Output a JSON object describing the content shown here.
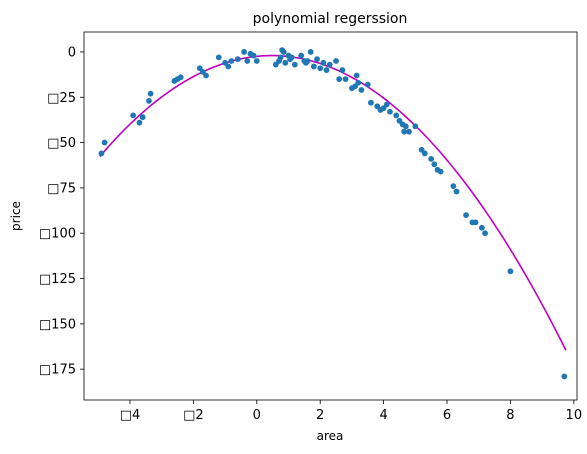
{
  "chart_data": {
    "type": "scatter",
    "title": "polynomial regerssion",
    "xlabel": "area",
    "ylabel": "price",
    "xlim": [
      -5.45,
      10.1
    ],
    "ylim": [
      -192,
      11
    ],
    "x_ticks": [
      -4,
      -2,
      0,
      2,
      4,
      6,
      8,
      10
    ],
    "x_tick_labels": [
      "□4",
      "□2",
      "0",
      "2",
      "4",
      "6",
      "8",
      "10"
    ],
    "y_ticks": [
      0,
      -25,
      -50,
      -75,
      -100,
      -125,
      -150,
      -175
    ],
    "y_tick_labels": [
      "0",
      "□25",
      "□50",
      "□75",
      "□100",
      "□125",
      "□150",
      "□175"
    ],
    "grid": false,
    "colors": {
      "points": "#1f77b4",
      "curve": "#bf00bf"
    },
    "series": [
      {
        "kind": "points",
        "x": [
          -4.9,
          -4.8,
          -3.9,
          -3.7,
          -3.6,
          -3.4,
          -3.35,
          -2.6,
          -2.5,
          -2.4,
          -1.8,
          -1.7,
          -1.6,
          -1.2,
          -1.0,
          -0.9,
          -0.8,
          -0.6,
          -0.4,
          -0.3,
          -0.2,
          -0.1,
          0.0,
          0.6,
          0.7,
          0.75,
          0.8,
          0.85,
          0.9,
          1.0,
          1.05,
          1.1,
          1.2,
          1.4,
          1.5,
          1.55,
          1.6,
          1.7,
          1.8,
          1.9,
          2.0,
          2.1,
          2.2,
          2.3,
          2.5,
          2.6,
          2.7,
          2.8,
          3.0,
          3.1,
          3.15,
          3.2,
          3.3,
          3.5,
          3.6,
          3.8,
          3.9,
          4.0,
          4.1,
          4.2,
          4.4,
          4.5,
          4.6,
          4.65,
          4.7,
          4.8,
          5.0,
          5.2,
          5.3,
          5.5,
          5.6,
          5.7,
          5.8,
          6.2,
          6.3,
          6.6,
          6.8,
          6.9,
          7.1,
          7.2,
          8.0,
          9.7
        ],
        "y": [
          -56,
          -50,
          -35,
          -39,
          -36,
          -27,
          -23,
          -16,
          -15,
          -14,
          -9,
          -11,
          -13,
          -3,
          -6,
          -8,
          -5,
          -4,
          0,
          -5,
          -1,
          -2,
          -5,
          -7,
          -5,
          -3,
          1,
          0,
          -6,
          -2,
          -4,
          -3,
          -7,
          -2,
          -5,
          -6,
          -5,
          0,
          -8,
          -4,
          -9,
          -6,
          -10,
          -7,
          -5,
          -15,
          -10,
          -15,
          -20,
          -19,
          -13,
          -17,
          -21,
          -18,
          -28,
          -30,
          -32,
          -31,
          -29,
          -33,
          -35,
          -38,
          -40,
          -44,
          -41,
          -44,
          -41,
          -54,
          -56,
          -59,
          -62,
          -65,
          -66,
          -74,
          -77,
          -90,
          -94,
          -94,
          -97,
          -100,
          -121,
          -179
        ]
      },
      {
        "kind": "curve",
        "equation": "y = -1.89*x^2 + 1.8*x - 2.43",
        "x_range": [
          -4.95,
          9.75
        ]
      }
    ]
  }
}
